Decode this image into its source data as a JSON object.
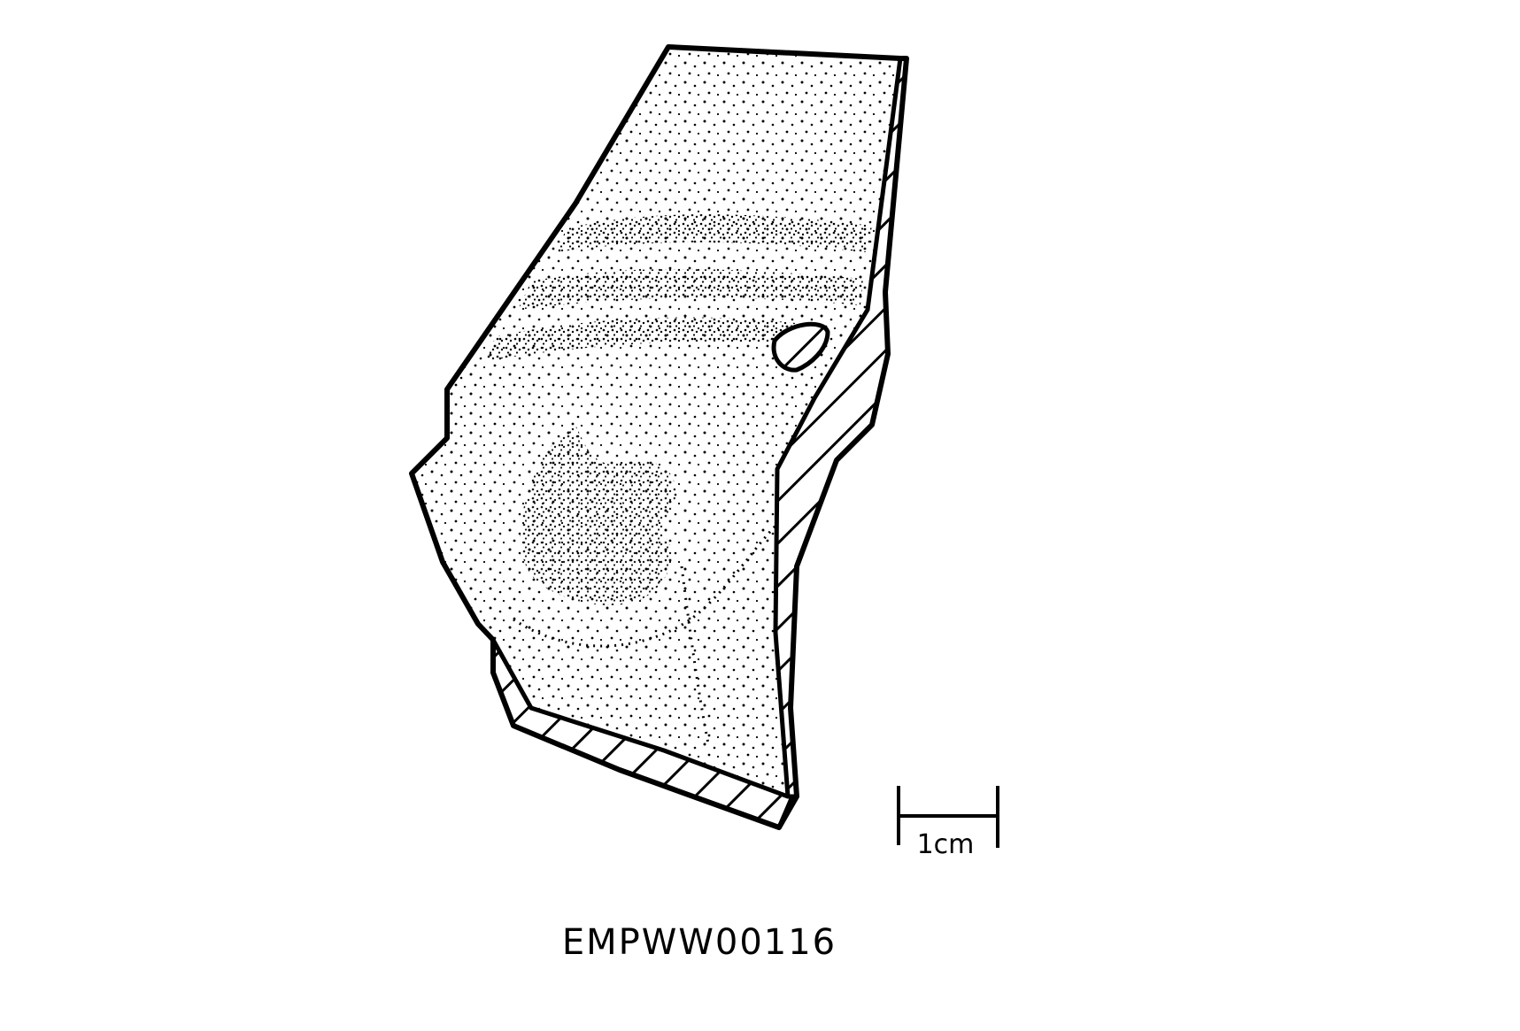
{
  "figure": {
    "catalog_number": "EMPWW00116",
    "scale_bar": {
      "label": "1cm"
    }
  },
  "colors": {
    "ink": "#000000",
    "paper": "#ffffff"
  }
}
